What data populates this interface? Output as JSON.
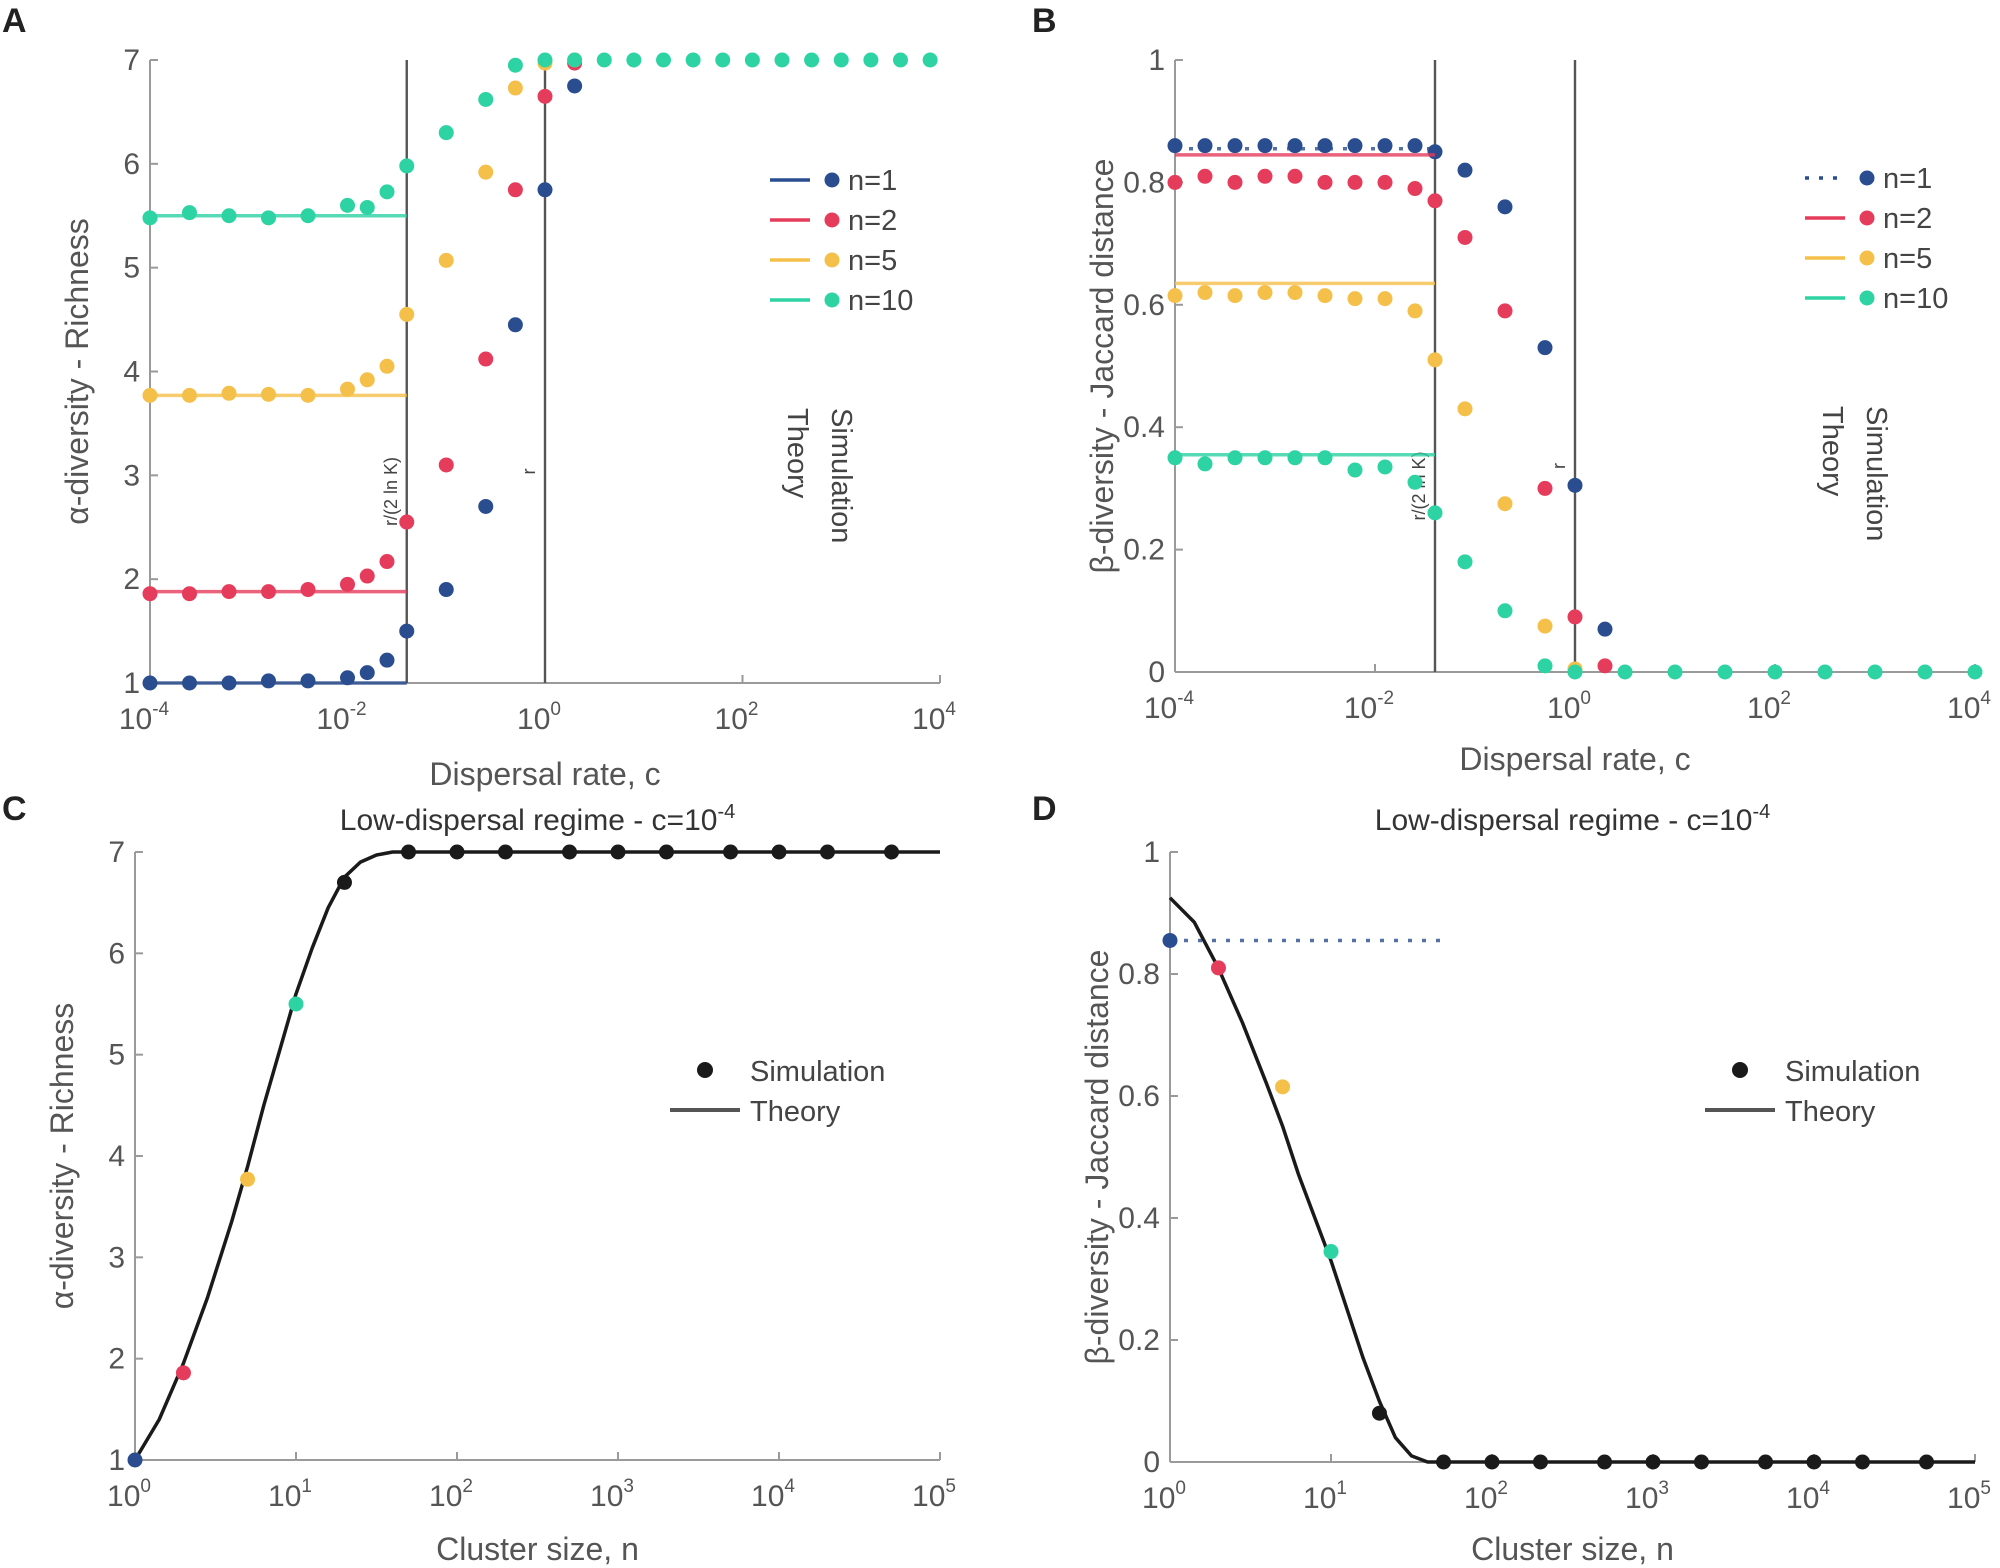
{
  "figure": {
    "colors": {
      "n1": "#2a4d8f",
      "n2": "#e63c5c",
      "n5": "#f5c04a",
      "n10": "#2ed3a4",
      "black": "#1a1a1a",
      "grid": "#c8c8c8"
    }
  },
  "chart_data": [
    {
      "id": "A",
      "panel_letter": "A",
      "type": "scatter",
      "title": "",
      "xlabel": "Dispersal rate, c",
      "ylabel": "α-diversity - Richness",
      "xscale": "log",
      "xlim_exp": [
        -4,
        4
      ],
      "ylim": [
        1,
        7
      ],
      "xticks_exp": [
        -4,
        -2,
        0,
        2,
        4
      ],
      "xtick_labels": [
        "10",
        "10",
        "10",
        "10",
        "10"
      ],
      "xtick_sups": [
        "-4",
        "-2",
        "0",
        "2",
        "4"
      ],
      "yticks": [
        1,
        2,
        3,
        4,
        5,
        6,
        7
      ],
      "ytick_labels": [
        "1",
        "2",
        "3",
        "4",
        "5",
        "6",
        "7"
      ],
      "vlines": [
        {
          "x_exp": -1.4,
          "label": "r/(2 ln K)"
        },
        {
          "x_exp": 0,
          "label": "r"
        }
      ],
      "legend": {
        "placement": "right",
        "entries": [
          {
            "label": "n=1",
            "color": "#2a4d8f",
            "dash": "solid"
          },
          {
            "label": "n=2",
            "color": "#e63c5c",
            "dash": "solid"
          },
          {
            "label": "n=5",
            "color": "#f5c04a",
            "dash": "solid"
          },
          {
            "label": "n=10",
            "color": "#2ed3a4",
            "dash": "solid"
          }
        ],
        "header_theory": "Theory",
        "header_simulation": "Simulation"
      },
      "series": [
        {
          "name": "n=1",
          "color": "#2a4d8f",
          "theory": {
            "x_exp": [
              -4,
              -1.4
            ],
            "y": [
              1.0,
              1.0
            ]
          },
          "x_exp": [
            -4,
            -3.6,
            -3.2,
            -2.8,
            -2.4,
            -2.0,
            -1.8,
            -1.6,
            -1.4,
            -1.0,
            -0.6,
            -0.3,
            0.0,
            0.3
          ],
          "y": [
            1.0,
            1.0,
            1.0,
            1.02,
            1.02,
            1.05,
            1.1,
            1.22,
            1.5,
            1.9,
            2.7,
            4.45,
            5.75,
            6.75
          ]
        },
        {
          "name": "n=2",
          "color": "#e63c5c",
          "theory": {
            "x_exp": [
              -4,
              -1.4
            ],
            "y": [
              1.88,
              1.88
            ]
          },
          "x_exp": [
            -4,
            -3.6,
            -3.2,
            -2.8,
            -2.4,
            -2.0,
            -1.8,
            -1.6,
            -1.4,
            -1.0,
            -0.6,
            -0.3,
            0.0,
            0.3
          ],
          "y": [
            1.86,
            1.86,
            1.88,
            1.88,
            1.9,
            1.95,
            2.03,
            2.17,
            2.55,
            3.1,
            4.12,
            5.75,
            6.65,
            6.97
          ]
        },
        {
          "name": "n=5",
          "color": "#f5c04a",
          "theory": {
            "x_exp": [
              -4,
              -1.4
            ],
            "y": [
              3.77,
              3.77
            ]
          },
          "x_exp": [
            -4,
            -3.6,
            -3.2,
            -2.8,
            -2.4,
            -2.0,
            -1.8,
            -1.6,
            -1.4,
            -1.0,
            -0.6,
            -0.3,
            0.0,
            0.3
          ],
          "y": [
            3.77,
            3.77,
            3.79,
            3.78,
            3.77,
            3.83,
            3.92,
            4.05,
            4.55,
            5.07,
            5.92,
            6.73,
            6.97,
            7.0
          ]
        },
        {
          "name": "n=10",
          "color": "#2ed3a4",
          "theory": {
            "x_exp": [
              -4,
              -1.4
            ],
            "y": [
              5.5,
              5.5
            ]
          },
          "x_exp": [
            -4,
            -3.6,
            -3.2,
            -2.8,
            -2.4,
            -2.0,
            -1.8,
            -1.6,
            -1.4,
            -1.0,
            -0.6,
            -0.3,
            0.0,
            0.3,
            0.6,
            0.9,
            1.2,
            1.5,
            1.8,
            2.1,
            2.4,
            2.7,
            3.0,
            3.3,
            3.6,
            3.9
          ],
          "y": [
            5.48,
            5.53,
            5.5,
            5.48,
            5.5,
            5.6,
            5.58,
            5.73,
            5.98,
            6.3,
            6.62,
            6.95,
            7.0,
            7.0,
            7.0,
            7.0,
            7.0,
            7.0,
            7.0,
            7.0,
            7.0,
            7.0,
            7.0,
            7.0,
            7.0,
            7.0
          ]
        }
      ]
    },
    {
      "id": "B",
      "panel_letter": "B",
      "type": "scatter",
      "title": "",
      "xlabel": "Dispersal rate, c",
      "ylabel": "β-diversity - Jaccard distance",
      "xscale": "log",
      "xlim_exp": [
        -4,
        4
      ],
      "ylim": [
        0,
        1
      ],
      "xticks_exp": [
        -4,
        -2,
        0,
        2,
        4
      ],
      "xtick_labels": [
        "10",
        "10",
        "10",
        "10",
        "10"
      ],
      "xtick_sups": [
        "-4",
        "-2",
        "0",
        "2",
        "4"
      ],
      "yticks": [
        0,
        0.2,
        0.4,
        0.6,
        0.8,
        1
      ],
      "ytick_labels": [
        "0",
        "0.2",
        "0.4",
        "0.6",
        "0.8",
        "1"
      ],
      "vlines": [
        {
          "x_exp": -1.4,
          "label": "r/(2 ln K)"
        },
        {
          "x_exp": 0,
          "label": "r"
        }
      ],
      "legend": {
        "placement": "right",
        "entries": [
          {
            "label": "n=1",
            "color": "#2a4d8f",
            "dash": "dotted"
          },
          {
            "label": "n=2",
            "color": "#e63c5c",
            "dash": "solid"
          },
          {
            "label": "n=5",
            "color": "#f5c04a",
            "dash": "solid"
          },
          {
            "label": "n=10",
            "color": "#2ed3a4",
            "dash": "solid"
          }
        ],
        "header_theory": "Theory",
        "header_simulation": "Simulation"
      },
      "series": [
        {
          "name": "n=1",
          "color": "#2a4d8f",
          "theory": {
            "x_exp": [
              -4,
              -1.4
            ],
            "y": [
              0.855,
              0.855
            ],
            "dash": "dotted"
          },
          "x_exp": [
            -4,
            -3.7,
            -3.4,
            -3.1,
            -2.8,
            -2.5,
            -2.2,
            -1.9,
            -1.6,
            -1.4,
            -1.1,
            -0.7,
            -0.3,
            0.0,
            0.3
          ],
          "y": [
            0.86,
            0.86,
            0.86,
            0.86,
            0.86,
            0.86,
            0.86,
            0.86,
            0.86,
            0.85,
            0.82,
            0.76,
            0.53,
            0.305,
            0.07
          ]
        },
        {
          "name": "n=2",
          "color": "#e63c5c",
          "theory": {
            "x_exp": [
              -4,
              -1.4
            ],
            "y": [
              0.845,
              0.845
            ]
          },
          "x_exp": [
            -4,
            -3.7,
            -3.4,
            -3.1,
            -2.8,
            -2.5,
            -2.2,
            -1.9,
            -1.6,
            -1.4,
            -1.1,
            -0.7,
            -0.3,
            0.0,
            0.3
          ],
          "y": [
            0.8,
            0.81,
            0.8,
            0.81,
            0.81,
            0.8,
            0.8,
            0.8,
            0.79,
            0.77,
            0.71,
            0.59,
            0.3,
            0.09,
            0.01
          ]
        },
        {
          "name": "n=5",
          "color": "#f5c04a",
          "theory": {
            "x_exp": [
              -4,
              -1.4
            ],
            "y": [
              0.635,
              0.635
            ]
          },
          "x_exp": [
            -4,
            -3.7,
            -3.4,
            -3.1,
            -2.8,
            -2.5,
            -2.2,
            -1.9,
            -1.6,
            -1.4,
            -1.1,
            -0.7,
            -0.3,
            0.0
          ],
          "y": [
            0.615,
            0.62,
            0.615,
            0.62,
            0.62,
            0.615,
            0.61,
            0.61,
            0.59,
            0.51,
            0.43,
            0.275,
            0.075,
            0.005
          ]
        },
        {
          "name": "n=10",
          "color": "#2ed3a4",
          "theory": {
            "x_exp": [
              -4,
              -1.4
            ],
            "y": [
              0.355,
              0.355
            ]
          },
          "x_exp": [
            -4,
            -3.7,
            -3.4,
            -3.1,
            -2.8,
            -2.5,
            -2.2,
            -1.9,
            -1.6,
            -1.4,
            -1.1,
            -0.7,
            -0.3,
            0.0,
            0.5,
            1.0,
            1.5,
            2.0,
            2.5,
            3.0,
            3.5,
            4.0
          ],
          "y": [
            0.35,
            0.34,
            0.35,
            0.35,
            0.35,
            0.35,
            0.33,
            0.335,
            0.31,
            0.26,
            0.18,
            0.1,
            0.01,
            0.0,
            0.0,
            0.0,
            0.0,
            0.0,
            0.0,
            0.0,
            0.0,
            0.0
          ]
        }
      ]
    },
    {
      "id": "C",
      "panel_letter": "C",
      "type": "line",
      "title": "Low-dispersal regime - c=10",
      "title_sup": "-4",
      "xlabel": "Cluster size, n",
      "ylabel": "α-diversity - Richness",
      "xscale": "log",
      "xlim_exp": [
        0,
        5
      ],
      "ylim": [
        1,
        7
      ],
      "xticks_exp": [
        0,
        1,
        2,
        3,
        4,
        5
      ],
      "xtick_labels": [
        "10",
        "10",
        "10",
        "10",
        "10",
        "10"
      ],
      "xtick_sups": [
        "0",
        "1",
        "2",
        "3",
        "4",
        "5"
      ],
      "yticks": [
        1,
        2,
        3,
        4,
        5,
        6,
        7
      ],
      "ytick_labels": [
        "1",
        "2",
        "3",
        "4",
        "5",
        "6",
        "7"
      ],
      "legend": {
        "placement": "right",
        "simulation_label": "Simulation",
        "theory_label": "Theory"
      },
      "theory_curve": {
        "x_exp": [
          0,
          0.15,
          0.3,
          0.45,
          0.6,
          0.7,
          0.8,
          0.9,
          1.0,
          1.1,
          1.2,
          1.3,
          1.4,
          1.5,
          1.6,
          1.7,
          2.0,
          3.0,
          4.0,
          5.0
        ],
        "y": [
          1.0,
          1.4,
          1.95,
          2.6,
          3.35,
          3.9,
          4.5,
          5.05,
          5.6,
          6.05,
          6.45,
          6.75,
          6.9,
          6.97,
          7.0,
          7.0,
          7.0,
          7.0,
          7.0,
          7.0
        ]
      },
      "simulation": {
        "x_exp": [
          0,
          0.301,
          0.699,
          1.0,
          1.301,
          1.699,
          2.0,
          2.301,
          2.699,
          3.0,
          3.301,
          3.699,
          4.0,
          4.301,
          4.699
        ],
        "y": [
          1.0,
          1.86,
          3.77,
          5.5,
          6.7,
          7.0,
          7.0,
          7.0,
          7.0,
          7.0,
          7.0,
          7.0,
          7.0,
          7.0,
          7.0
        ],
        "colors": [
          "#2a4d8f",
          "#e63c5c",
          "#f5c04a",
          "#2ed3a4",
          "#1a1a1a",
          "#1a1a1a",
          "#1a1a1a",
          "#1a1a1a",
          "#1a1a1a",
          "#1a1a1a",
          "#1a1a1a",
          "#1a1a1a",
          "#1a1a1a",
          "#1a1a1a",
          "#1a1a1a"
        ]
      }
    },
    {
      "id": "D",
      "panel_letter": "D",
      "type": "line",
      "title": "Low-dispersal regime - c=10",
      "title_sup": "-4",
      "xlabel": "Cluster size, n",
      "ylabel": "β-diversity - Jaccard distance",
      "xscale": "log",
      "xlim_exp": [
        0,
        5
      ],
      "ylim": [
        0,
        1
      ],
      "xticks_exp": [
        0,
        1,
        2,
        3,
        4,
        5
      ],
      "xtick_labels": [
        "10",
        "10",
        "10",
        "10",
        "10",
        "10"
      ],
      "xtick_sups": [
        "0",
        "1",
        "2",
        "3",
        "4",
        "5"
      ],
      "yticks": [
        0,
        0.2,
        0.4,
        0.6,
        0.8,
        1
      ],
      "ytick_labels": [
        "0",
        "0.2",
        "0.4",
        "0.6",
        "0.8",
        "1"
      ],
      "legend": {
        "placement": "right",
        "simulation_label": "Simulation",
        "theory_label": "Theory"
      },
      "reference_line": {
        "x_exp": [
          0,
          1.7
        ],
        "y": [
          0.855,
          0.855
        ],
        "color": "#2a4d8f",
        "dash": "dotted"
      },
      "theory_curve": {
        "x_exp": [
          0,
          0.15,
          0.3,
          0.45,
          0.6,
          0.7,
          0.8,
          0.9,
          1.0,
          1.1,
          1.2,
          1.3,
          1.4,
          1.5,
          1.6,
          1.7,
          2.0,
          3.0,
          4.0,
          5.0
        ],
        "y": [
          0.925,
          0.885,
          0.81,
          0.72,
          0.62,
          0.55,
          0.47,
          0.4,
          0.33,
          0.25,
          0.17,
          0.1,
          0.04,
          0.01,
          0.0,
          0.0,
          0.0,
          0.0,
          0.0,
          0.0
        ]
      },
      "simulation": {
        "x_exp": [
          0,
          0.301,
          0.699,
          1.0,
          1.301,
          1.699,
          2.0,
          2.301,
          2.699,
          3.0,
          3.301,
          3.699,
          4.0,
          4.301,
          4.699
        ],
        "y": [
          0.855,
          0.81,
          0.615,
          0.345,
          0.08,
          0.0,
          0.0,
          0.0,
          0.0,
          0.0,
          0.0,
          0.0,
          0.0,
          0.0,
          0.0
        ],
        "colors": [
          "#2a4d8f",
          "#e63c5c",
          "#f5c04a",
          "#2ed3a4",
          "#1a1a1a",
          "#1a1a1a",
          "#1a1a1a",
          "#1a1a1a",
          "#1a1a1a",
          "#1a1a1a",
          "#1a1a1a",
          "#1a1a1a",
          "#1a1a1a",
          "#1a1a1a",
          "#1a1a1a"
        ]
      }
    }
  ]
}
